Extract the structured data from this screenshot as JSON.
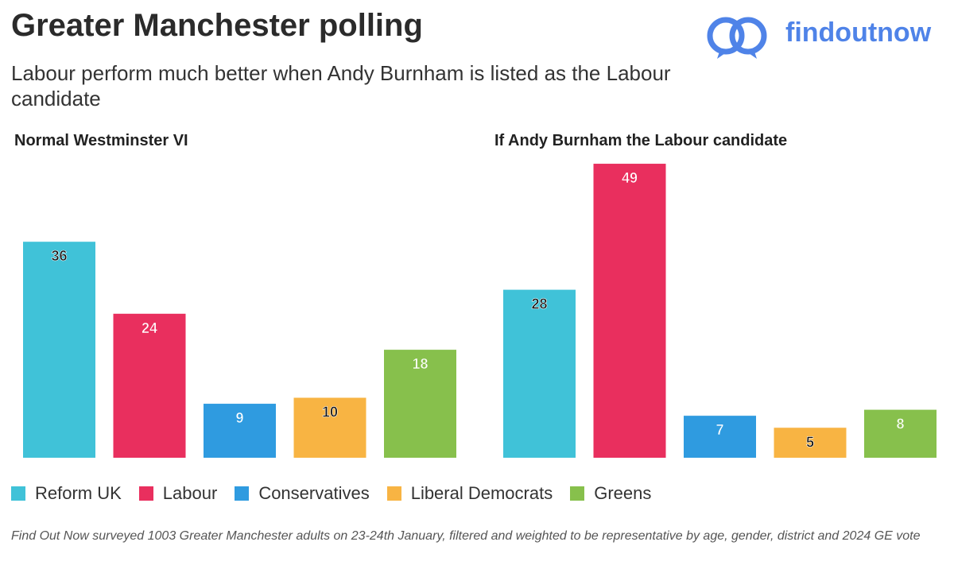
{
  "header": {
    "title": "Greater Manchester polling",
    "subtitle": "Labour perform much better when Andy Burnham is listed as the Labour candidate",
    "brand": "findoutnow"
  },
  "colors": {
    "Reform UK": "#40c2d8",
    "Labour": "#e92f5e",
    "Conservatives": "#2f9be0",
    "Liberal Democrats": "#f8b443",
    "Greens": "#87c04c",
    "brand": "#4f83e8"
  },
  "chart_data": [
    {
      "type": "bar",
      "title": "Normal Westminster VI",
      "categories": [
        "Reform UK",
        "Labour",
        "Conservatives",
        "Liberal Democrats",
        "Greens"
      ],
      "values": [
        36,
        24,
        9,
        10,
        18
      ],
      "ylim": [
        0,
        50
      ],
      "grid": false
    },
    {
      "type": "bar",
      "title": "If Andy Burnham the Labour candidate",
      "categories": [
        "Reform UK",
        "Labour",
        "Conservatives",
        "Liberal Democrats",
        "Greens"
      ],
      "values": [
        28,
        49,
        7,
        5,
        8
      ],
      "ylim": [
        0,
        50
      ],
      "grid": false
    }
  ],
  "legend": [
    "Reform UK",
    "Labour",
    "Conservatives",
    "Liberal Democrats",
    "Greens"
  ],
  "footnote": "Find Out Now surveyed 1003 Greater Manchester adults on 23-24th January, filtered and weighted to be representative by age, gender, district and 2024 GE vote"
}
